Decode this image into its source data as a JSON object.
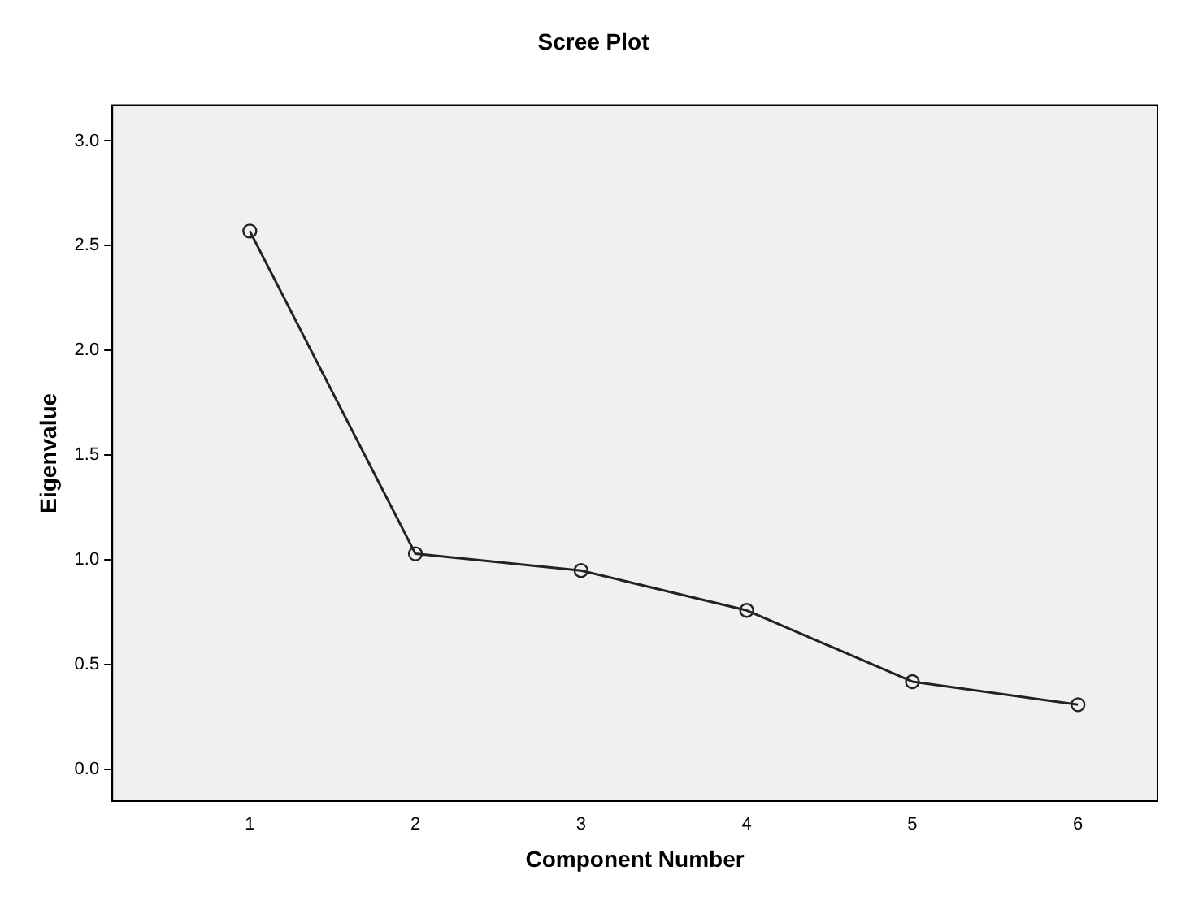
{
  "chart_data": {
    "type": "line",
    "title": "Scree Plot",
    "xlabel": "Component Number",
    "ylabel": "Eigenvalue",
    "x": [
      1,
      2,
      3,
      4,
      5,
      6
    ],
    "series": [
      {
        "color": "#222222",
        "values": [
          2.57,
          1.03,
          0.95,
          0.76,
          0.42,
          0.31
        ]
      }
    ],
    "xlim": [
      0.17,
      6.48
    ],
    "xticks": [
      1,
      2,
      3,
      4,
      5,
      6
    ],
    "ylim": [
      -0.15,
      3.17
    ],
    "yticks": [
      {
        "value": 0,
        "label": "0.0"
      },
      {
        "value": 0.5,
        "label": "0.5"
      },
      {
        "value": 1,
        "label": "1.0"
      },
      {
        "value": 1.5,
        "label": "1.5"
      },
      {
        "value": 2,
        "label": "2.0"
      },
      {
        "value": 2.5,
        "label": "2.5"
      },
      {
        "value": 3,
        "label": "3.0"
      }
    ],
    "grid": false,
    "legend": false,
    "marker": "circle",
    "line_style": "solid"
  }
}
